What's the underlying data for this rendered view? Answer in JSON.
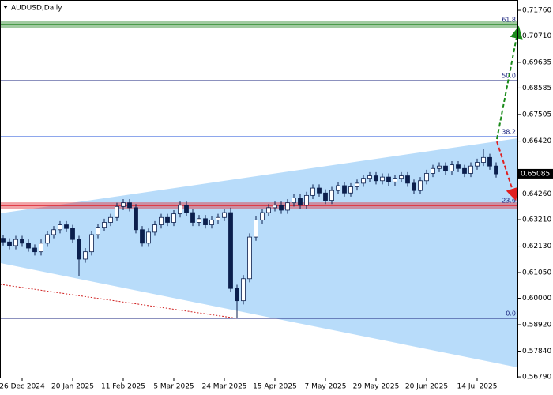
{
  "chart_data": {
    "type": "candlestick",
    "title": "AUDUSD,Daily",
    "categories": [
      null,
      null,
      null,
      "26 Dec 2024",
      null,
      null,
      null,
      null,
      null,
      null,
      null,
      "20 Jan 2025",
      null,
      null,
      null,
      null,
      null,
      null,
      null,
      "11 Feb 2025",
      null,
      null,
      null,
      null,
      null,
      null,
      null,
      "5 Mar 2025",
      null,
      null,
      null,
      null,
      null,
      null,
      null,
      "24 Mar 2025",
      null,
      null,
      null,
      null,
      null,
      null,
      null,
      "15 Apr 2025",
      null,
      null,
      null,
      null,
      null,
      null,
      null,
      "7 May 2025",
      null,
      null,
      null,
      null,
      null,
      null,
      null,
      "29 May 2025",
      null,
      null,
      null,
      null,
      null,
      null,
      null,
      "20 Jun 2025",
      null,
      null,
      null,
      null,
      null,
      null,
      null,
      "14 Jul 2025",
      null,
      null,
      null
    ],
    "open": [
      0.6245,
      0.623,
      0.6215,
      0.624,
      0.6225,
      0.6205,
      0.619,
      0.6225,
      0.626,
      0.628,
      0.63,
      0.6285,
      0.624,
      0.616,
      0.619,
      0.626,
      0.629,
      0.631,
      0.633,
      0.6375,
      0.639,
      0.637,
      0.628,
      0.6225,
      0.627,
      0.63,
      0.633,
      0.631,
      0.6345,
      0.638,
      0.635,
      0.631,
      0.6325,
      0.63,
      0.632,
      0.633,
      0.635,
      0.604,
      0.599,
      0.608,
      0.625,
      0.632,
      0.635,
      0.637,
      0.638,
      0.636,
      0.639,
      0.641,
      0.638,
      0.642,
      0.645,
      0.643,
      0.64,
      0.644,
      0.646,
      0.643,
      0.6455,
      0.647,
      0.649,
      0.65,
      0.648,
      0.6495,
      0.6475,
      0.649,
      0.65,
      0.647,
      0.644,
      0.648,
      0.651,
      0.653,
      0.654,
      0.652,
      0.6545,
      0.653,
      0.651,
      0.654,
      0.6555,
      0.6575,
      0.654
    ],
    "high": [
      0.626,
      0.6245,
      0.6255,
      0.6255,
      0.624,
      0.622,
      0.624,
      0.6275,
      0.6295,
      0.6315,
      0.6315,
      0.63,
      0.6255,
      0.6205,
      0.6275,
      0.6305,
      0.6325,
      0.6345,
      0.639,
      0.6405,
      0.6405,
      0.6385,
      0.6295,
      0.6285,
      0.6315,
      0.6345,
      0.6345,
      0.636,
      0.6395,
      0.6395,
      0.6365,
      0.634,
      0.634,
      0.6335,
      0.6345,
      0.6365,
      0.637,
      0.6055,
      0.6095,
      0.6265,
      0.6335,
      0.6365,
      0.6385,
      0.6395,
      0.6395,
      0.6405,
      0.6425,
      0.6425,
      0.6435,
      0.6465,
      0.6465,
      0.6445,
      0.6455,
      0.6475,
      0.6475,
      0.647,
      0.6485,
      0.6505,
      0.6515,
      0.6515,
      0.651,
      0.651,
      0.6505,
      0.6515,
      0.6515,
      0.6485,
      0.6495,
      0.6525,
      0.6545,
      0.6555,
      0.6555,
      0.656,
      0.656,
      0.6545,
      0.6555,
      0.657,
      0.661,
      0.659,
      0.6555
    ],
    "low": [
      0.6215,
      0.62,
      0.62,
      0.621,
      0.619,
      0.6175,
      0.6175,
      0.621,
      0.6245,
      0.6265,
      0.627,
      0.6225,
      0.609,
      0.6145,
      0.6175,
      0.6245,
      0.6275,
      0.6295,
      0.6315,
      0.636,
      0.6355,
      0.6265,
      0.621,
      0.621,
      0.6255,
      0.6285,
      0.6295,
      0.6295,
      0.633,
      0.6335,
      0.6295,
      0.6295,
      0.6285,
      0.6285,
      0.6305,
      0.6315,
      0.6025,
      0.5918,
      0.5975,
      0.6065,
      0.6235,
      0.6305,
      0.6335,
      0.6355,
      0.6345,
      0.6345,
      0.6375,
      0.6365,
      0.6365,
      0.6405,
      0.6415,
      0.6385,
      0.6385,
      0.6425,
      0.6415,
      0.6415,
      0.644,
      0.6455,
      0.6475,
      0.6465,
      0.6465,
      0.646,
      0.646,
      0.6475,
      0.6455,
      0.6425,
      0.6425,
      0.6465,
      0.6495,
      0.6515,
      0.6505,
      0.6505,
      0.6515,
      0.6495,
      0.6495,
      0.6525,
      0.654,
      0.6525,
      0.6493
    ],
    "close": [
      0.623,
      0.6215,
      0.624,
      0.6225,
      0.6205,
      0.619,
      0.6225,
      0.626,
      0.628,
      0.63,
      0.6285,
      0.624,
      0.616,
      0.619,
      0.626,
      0.629,
      0.631,
      0.633,
      0.6375,
      0.639,
      0.637,
      0.628,
      0.6225,
      0.627,
      0.63,
      0.633,
      0.631,
      0.6345,
      0.638,
      0.635,
      0.631,
      0.6325,
      0.63,
      0.632,
      0.633,
      0.635,
      0.604,
      0.599,
      0.608,
      0.625,
      0.632,
      0.635,
      0.637,
      0.638,
      0.636,
      0.639,
      0.641,
      0.638,
      0.642,
      0.645,
      0.643,
      0.64,
      0.644,
      0.646,
      0.643,
      0.6455,
      0.647,
      0.649,
      0.65,
      0.648,
      0.6495,
      0.6475,
      0.649,
      0.65,
      0.647,
      0.644,
      0.648,
      0.651,
      0.653,
      0.654,
      0.652,
      0.6545,
      0.653,
      0.651,
      0.654,
      0.6555,
      0.6575,
      0.654,
      0.6508
    ],
    "candle_color": "#0b1f4d",
    "ylim": [
      0.5676,
      0.7218
    ],
    "yticks": [
      {
        "value": 0.7176,
        "label": "0.71760"
      },
      {
        "value": 0.7071,
        "label": "0.70710"
      },
      {
        "value": 0.69635,
        "label": "0.69635"
      },
      {
        "value": 0.68585,
        "label": "0.68585"
      },
      {
        "value": 0.67505,
        "label": "0.67505"
      },
      {
        "value": 0.6642,
        "label": "0.66420"
      },
      {
        "value": 0.6426,
        "label": "0.64260"
      },
      {
        "value": 0.6321,
        "label": "0.63210"
      },
      {
        "value": 0.6213,
        "label": "0.62130"
      },
      {
        "value": 0.6105,
        "label": "0.61050"
      },
      {
        "value": 0.6,
        "label": "0.60000"
      },
      {
        "value": 0.5892,
        "label": "0.58920"
      },
      {
        "value": 0.5784,
        "label": "0.57840"
      },
      {
        "value": 0.5679,
        "label": "0.56790"
      }
    ],
    "current_price": {
      "value": 0.65085,
      "label": "0.65085"
    },
    "fib_levels": [
      {
        "label": "61.8",
        "price": 0.7118,
        "color": "#2e8b2e",
        "band": true
      },
      {
        "label": "50.0",
        "price": 0.6889,
        "color": "#1a237e",
        "band": false
      },
      {
        "label": "38.2",
        "price": 0.666,
        "color": "#1e4fd8",
        "band": false
      },
      {
        "label": "23.6",
        "price": 0.6379,
        "color": "#e0303a",
        "band": true
      },
      {
        "label": "0.0",
        "price": 0.5918,
        "color": "#1a237e",
        "band": false
      }
    ],
    "channel": {
      "upper": [
        0.6347,
        0.6653
      ],
      "lower": [
        0.6144,
        0.5718
      ],
      "color": "#b8dcfa"
    },
    "support_line": {
      "from": 0.6057,
      "to": 0.5918,
      "to_index": 37,
      "color": "#d02020"
    },
    "forecasts": [
      {
        "from": 0.665,
        "to": 0.71,
        "color": "#1a8a1a"
      },
      {
        "from": 0.664,
        "to": 0.641,
        "color": "#e02020"
      }
    ]
  }
}
